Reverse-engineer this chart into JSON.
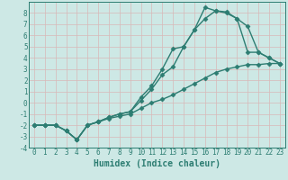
{
  "background_color": "#cde8e5",
  "grid_color": "#b0d4d0",
  "line_color": "#2d7d72",
  "xlabel": "Humidex (Indice chaleur)",
  "xlim": [
    -0.5,
    23.5
  ],
  "ylim": [
    -4,
    9
  ],
  "xticks": [
    0,
    1,
    2,
    3,
    4,
    5,
    6,
    7,
    8,
    9,
    10,
    11,
    12,
    13,
    14,
    15,
    16,
    17,
    18,
    19,
    20,
    21,
    22,
    23
  ],
  "yticks": [
    -4,
    -3,
    -2,
    -1,
    0,
    1,
    2,
    3,
    4,
    5,
    6,
    7,
    8
  ],
  "line1_x": [
    0,
    1,
    2,
    3,
    4,
    5,
    6,
    7,
    8,
    9,
    10,
    11,
    12,
    13,
    14,
    15,
    16,
    17,
    18,
    19,
    20,
    21,
    22,
    23
  ],
  "line1_y": [
    -2,
    -2,
    -2,
    -2.5,
    -3.3,
    -2,
    -1.7,
    -1.4,
    -1.2,
    -1,
    -0.5,
    0,
    0.3,
    0.7,
    1.2,
    1.7,
    2.2,
    2.7,
    3.0,
    3.2,
    3.4,
    3.4,
    3.5,
    3.5
  ],
  "line2_x": [
    0,
    1,
    2,
    3,
    4,
    5,
    6,
    7,
    8,
    9,
    10,
    11,
    12,
    13,
    14,
    15,
    16,
    17,
    18,
    19,
    20,
    21,
    22,
    23
  ],
  "line2_y": [
    -2,
    -2,
    -2,
    -2.5,
    -3.3,
    -2,
    -1.7,
    -1.3,
    -1.0,
    -0.8,
    0.2,
    1.2,
    2.5,
    3.2,
    5.0,
    6.5,
    7.5,
    8.2,
    8.1,
    7.5,
    6.8,
    4.5,
    4.0,
    3.5
  ],
  "line3_x": [
    0,
    1,
    2,
    3,
    4,
    5,
    6,
    7,
    8,
    9,
    10,
    11,
    12,
    13,
    14,
    15,
    16,
    17,
    18,
    19,
    20,
    21,
    22,
    23
  ],
  "line3_y": [
    -2,
    -2,
    -2,
    -2.5,
    -3.3,
    -2,
    -1.7,
    -1.3,
    -1.0,
    -0.8,
    0.5,
    1.5,
    3.0,
    4.8,
    5.0,
    6.5,
    8.5,
    8.2,
    8.0,
    7.5,
    4.5,
    4.5,
    4.0,
    3.5
  ],
  "marker": "D",
  "markersize": 2.5,
  "linewidth": 1.0,
  "xlabel_fontsize": 7,
  "tick_fontsize": 5.5
}
